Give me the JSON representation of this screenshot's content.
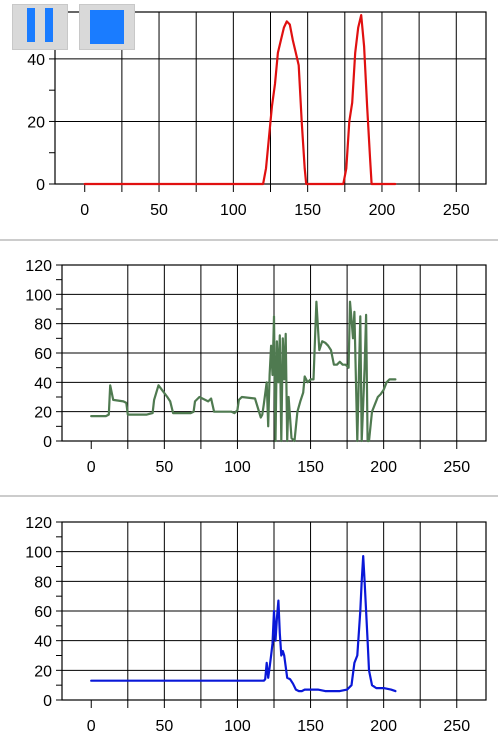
{
  "controls": {
    "pause_icon": "pause-icon",
    "stop_icon": "stop-icon",
    "accent": "#1a7cff"
  },
  "chart_data": [
    {
      "type": "line",
      "xlim": [
        -20,
        270
      ],
      "ylim": [
        0,
        55
      ],
      "xticks": [
        0,
        50,
        100,
        150,
        200,
        250
      ],
      "yticks": [
        0,
        20,
        40
      ],
      "xtick_labels": [
        "0",
        "50",
        "100",
        "150",
        "200",
        "250"
      ],
      "ytick_labels": [
        "0",
        "20",
        "40"
      ],
      "grid": true,
      "series": [
        {
          "color": "#e01010",
          "x": [
            0,
            120,
            122,
            124,
            126,
            128,
            130,
            132,
            134,
            136,
            138,
            140,
            142,
            144,
            146,
            148,
            149,
            174,
            176,
            178,
            180,
            182,
            184,
            186,
            188,
            190,
            192,
            193,
            209
          ],
          "y": [
            0,
            0,
            5,
            15,
            25,
            32,
            42,
            46,
            50,
            52,
            51,
            46,
            42,
            38,
            20,
            5,
            0,
            0,
            5,
            20,
            26,
            42,
            50,
            54,
            44,
            25,
            8,
            0,
            0
          ]
        }
      ]
    },
    {
      "type": "line",
      "xlim": [
        -20,
        270
      ],
      "ylim": [
        0,
        120
      ],
      "xticks": [
        0,
        50,
        100,
        150,
        200,
        250
      ],
      "yticks": [
        0,
        20,
        40,
        60,
        80,
        100,
        120
      ],
      "xtick_labels": [
        "0",
        "50",
        "100",
        "150",
        "200",
        "250"
      ],
      "ytick_labels": [
        "0",
        "20",
        "40",
        "60",
        "80",
        "100",
        "120"
      ],
      "grid": true,
      "series": [
        {
          "color": "#4f7a50",
          "x": [
            0,
            10,
            12,
            13,
            15,
            22,
            24,
            25,
            38,
            42,
            43,
            46,
            52,
            54,
            56,
            68,
            70,
            71,
            74,
            80,
            82,
            84,
            96,
            98,
            100,
            101,
            103,
            112,
            116,
            117,
            118,
            120,
            121,
            122,
            123,
            124,
            125,
            126,
            127,
            128,
            129,
            130,
            131,
            132,
            133,
            134,
            135,
            137,
            139,
            141,
            143,
            145,
            146,
            148,
            150,
            152,
            154,
            156,
            158,
            160,
            162,
            164,
            166,
            168,
            170,
            172,
            174,
            176,
            177,
            178,
            179,
            180,
            182,
            184,
            185,
            186,
            187,
            188,
            189,
            190,
            192,
            194,
            196,
            198,
            200,
            202,
            204,
            206,
            208
          ],
          "y": [
            17,
            17,
            18,
            38,
            28,
            27,
            26,
            18,
            18,
            19,
            28,
            38,
            30,
            27,
            19,
            19,
            20,
            27,
            30,
            27,
            29,
            20,
            20,
            19,
            21,
            28,
            30,
            29,
            16,
            18,
            25,
            40,
            10,
            45,
            65,
            45,
            85,
            0,
            68,
            40,
            72,
            0,
            70,
            42,
            73,
            0,
            30,
            2,
            0,
            20,
            27,
            33,
            44,
            40,
            42,
            42,
            95,
            62,
            68,
            67,
            65,
            62,
            52,
            52,
            54,
            52,
            52,
            50,
            95,
            83,
            70,
            88,
            0,
            85,
            0,
            25,
            50,
            86,
            0,
            0,
            20,
            25,
            30,
            32,
            35,
            40,
            42,
            42,
            42
          ]
        }
      ]
    },
    {
      "type": "line",
      "xlim": [
        -20,
        270
      ],
      "ylim": [
        0,
        120
      ],
      "xticks": [
        0,
        50,
        100,
        150,
        200,
        250
      ],
      "yticks": [
        0,
        20,
        40,
        60,
        80,
        100,
        120
      ],
      "xtick_labels": [
        "0",
        "50",
        "100",
        "150",
        "200",
        "250"
      ],
      "ytick_labels": [
        "0",
        "20",
        "40",
        "60",
        "80",
        "100",
        "120"
      ],
      "grid": true,
      "series": [
        {
          "color": "#0a18d8",
          "x": [
            0,
            20,
            40,
            60,
            80,
            100,
            118,
            119,
            120,
            121,
            122,
            123,
            124,
            125,
            126,
            127,
            128,
            129,
            130,
            131,
            132,
            134,
            136,
            138,
            140,
            142,
            144,
            146,
            148,
            150,
            155,
            160,
            165,
            170,
            175,
            178,
            180,
            182,
            183,
            184,
            185,
            186,
            187,
            188,
            189,
            190,
            192,
            195,
            200,
            205,
            208
          ],
          "y": [
            13,
            13,
            13,
            13,
            13,
            13,
            13,
            14,
            25,
            15,
            22,
            30,
            38,
            60,
            40,
            55,
            67,
            45,
            30,
            33,
            30,
            15,
            14,
            11,
            7,
            6,
            6,
            7,
            7,
            7,
            7,
            6,
            6,
            6,
            7,
            10,
            25,
            30,
            45,
            60,
            80,
            97,
            80,
            60,
            40,
            20,
            10,
            8,
            8,
            7,
            6
          ]
        }
      ]
    }
  ]
}
